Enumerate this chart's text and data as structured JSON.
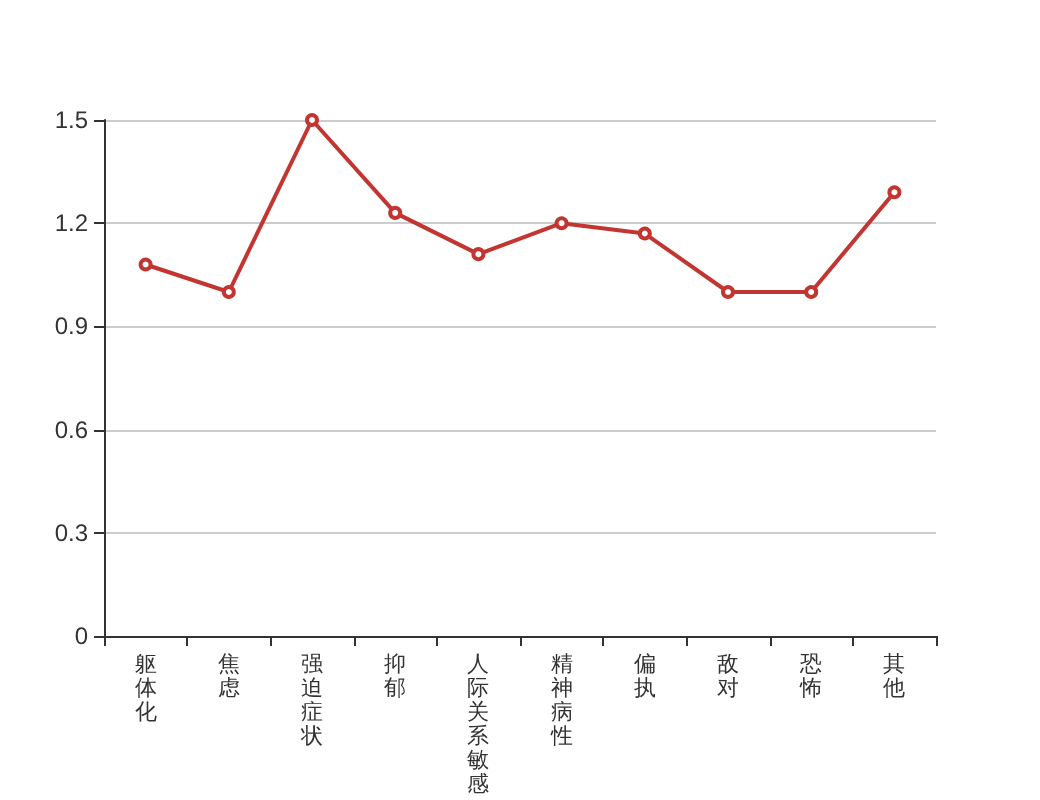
{
  "chart_data": {
    "type": "line",
    "categories": [
      "躯体化",
      "焦虑",
      "强迫症状",
      "抑郁",
      "人际关系敏感",
      "精神病性",
      "偏执",
      "敌对",
      "恐怖",
      "其他"
    ],
    "series": [
      {
        "color": "#c23531",
        "values": [
          1.08,
          1.0,
          1.5,
          1.23,
          1.11,
          1.2,
          1.17,
          1.0,
          1.0,
          1.29
        ]
      }
    ],
    "ylim": [
      0,
      1.5
    ],
    "yticks": [
      0,
      0.3,
      0.6,
      0.9,
      1.2,
      1.5
    ],
    "grid": "y",
    "marker": "circle",
    "line_style": "solid"
  }
}
